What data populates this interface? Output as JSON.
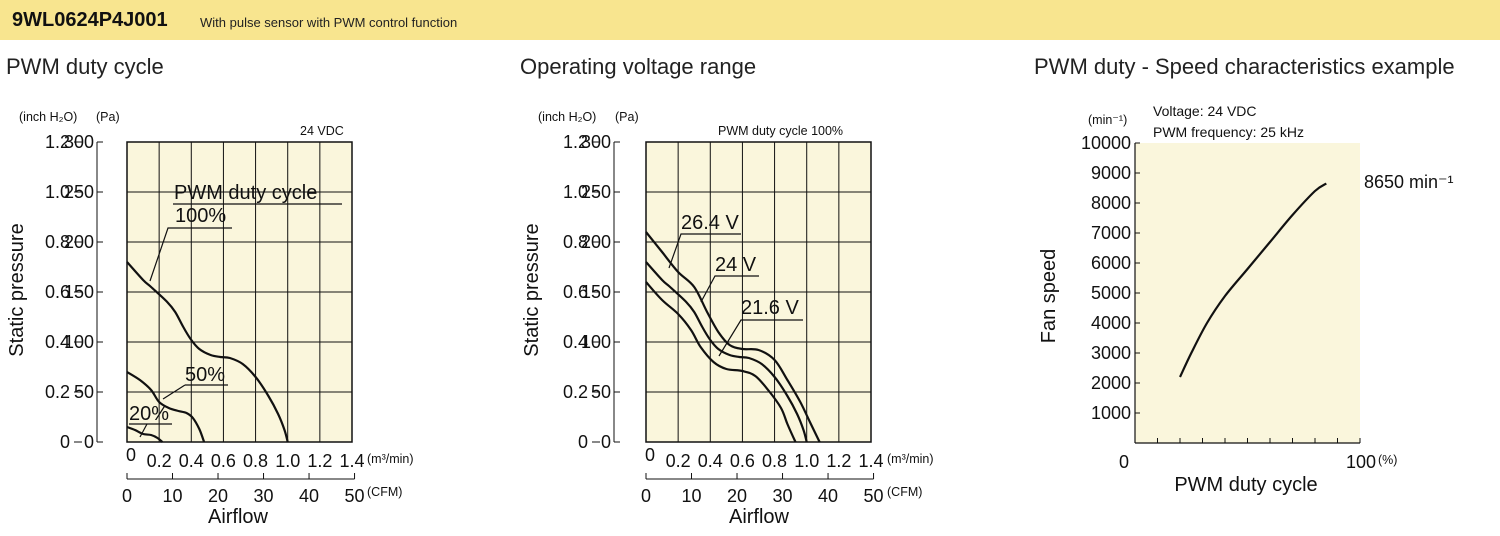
{
  "header": {
    "model": "9WL0624P4J001",
    "description": "With pulse sensor with PWM control function"
  },
  "sections": [
    {
      "title": "PWM duty cycle"
    },
    {
      "title": "Operating voltage range"
    },
    {
      "title": "PWM duty - Speed characteristics example"
    }
  ],
  "colors": {
    "banner": "#f8e58f",
    "plot_bg": "#faf6dc",
    "line": "#111111"
  },
  "chart_data": [
    {
      "type": "line",
      "title": "",
      "note": "24 VDC",
      "legend_title": "PWM duty cycle",
      "xlabel": "Airflow",
      "x_unit_primary": "(m³/min)",
      "x_unit_secondary": "(CFM)",
      "ylabel": "Static pressure",
      "y_unit_left": "(inch H₂O)",
      "y_unit_right": "(Pa)",
      "xlim": [
        0,
        1.4
      ],
      "ylim": [
        0,
        300
      ],
      "grid": true,
      "x_ticks": [
        "0.2",
        "0.4",
        "0.6",
        "0.8",
        "1.0",
        "1.2",
        "1.4"
      ],
      "x_cfm_ticks": [
        "0",
        "10",
        "20",
        "30",
        "40",
        "50"
      ],
      "y_pa_ticks": [
        "0",
        "50",
        "100",
        "150",
        "200",
        "250",
        "300"
      ],
      "y_inch_ticks": [
        "0",
        "0.2",
        "0.4",
        "0.6",
        "0.8",
        "1.0",
        "1.2"
      ],
      "x_origin_label": "0",
      "series": [
        {
          "name": "100%",
          "points": [
            [
              0,
              180
            ],
            [
              0.1,
              162
            ],
            [
              0.15,
              155
            ],
            [
              0.25,
              140
            ],
            [
              0.3,
              130
            ],
            [
              0.35,
              115
            ],
            [
              0.4,
              102
            ],
            [
              0.45,
              93
            ],
            [
              0.52,
              87
            ],
            [
              0.58,
              85
            ],
            [
              0.64,
              84
            ],
            [
              0.72,
              78
            ],
            [
              0.8,
              65
            ],
            [
              0.88,
              46
            ],
            [
              0.94,
              28
            ],
            [
              0.98,
              12
            ],
            [
              1.0,
              0
            ]
          ]
        },
        {
          "name": "50%",
          "points": [
            [
              0,
              70
            ],
            [
              0.08,
              62
            ],
            [
              0.15,
              52
            ],
            [
              0.2,
              40
            ],
            [
              0.26,
              34
            ],
            [
              0.32,
              31
            ],
            [
              0.37,
              29
            ],
            [
              0.41,
              24
            ],
            [
              0.45,
              13
            ],
            [
              0.48,
              0
            ]
          ]
        },
        {
          "name": "20%",
          "points": [
            [
              0,
              15
            ],
            [
              0.05,
              12
            ],
            [
              0.1,
              8
            ],
            [
              0.15,
              7
            ],
            [
              0.19,
              4
            ],
            [
              0.22,
              0
            ]
          ]
        }
      ]
    },
    {
      "type": "line",
      "title": "",
      "note": "PWM duty cycle 100%",
      "xlabel": "Airflow",
      "x_unit_primary": "(m³/min)",
      "x_unit_secondary": "(CFM)",
      "ylabel": "Static pressure",
      "y_unit_left": "(inch H₂O)",
      "y_unit_right": "(Pa)",
      "xlim": [
        0,
        1.4
      ],
      "ylim": [
        0,
        300
      ],
      "grid": true,
      "x_ticks": [
        "0.2",
        "0.4",
        "0.6",
        "0.8",
        "1.0",
        "1.2",
        "1.4"
      ],
      "x_cfm_ticks": [
        "0",
        "10",
        "20",
        "30",
        "40",
        "50"
      ],
      "y_pa_ticks": [
        "0",
        "50",
        "100",
        "150",
        "200",
        "250",
        "300"
      ],
      "y_inch_ticks": [
        "0",
        "0.2",
        "0.4",
        "0.6",
        "0.8",
        "1.0",
        "1.2"
      ],
      "x_origin_label": "0",
      "series": [
        {
          "name": "26.4 V",
          "points": [
            [
              0,
              210
            ],
            [
              0.1,
              190
            ],
            [
              0.2,
              170
            ],
            [
              0.3,
              155
            ],
            [
              0.38,
              130
            ],
            [
              0.45,
              110
            ],
            [
              0.52,
              97
            ],
            [
              0.6,
              93
            ],
            [
              0.7,
              92
            ],
            [
              0.8,
              82
            ],
            [
              0.88,
              62
            ],
            [
              0.96,
              40
            ],
            [
              1.02,
              20
            ],
            [
              1.08,
              0
            ]
          ]
        },
        {
          "name": "24 V",
          "points": [
            [
              0,
              180
            ],
            [
              0.1,
              162
            ],
            [
              0.15,
              155
            ],
            [
              0.25,
              140
            ],
            [
              0.3,
              130
            ],
            [
              0.35,
              115
            ],
            [
              0.4,
              102
            ],
            [
              0.45,
              93
            ],
            [
              0.52,
              87
            ],
            [
              0.58,
              85
            ],
            [
              0.64,
              84
            ],
            [
              0.72,
              78
            ],
            [
              0.8,
              65
            ],
            [
              0.88,
              46
            ],
            [
              0.94,
              28
            ],
            [
              0.98,
              12
            ],
            [
              1.0,
              0
            ]
          ]
        },
        {
          "name": "21.6 V",
          "points": [
            [
              0,
              160
            ],
            [
              0.1,
              142
            ],
            [
              0.2,
              128
            ],
            [
              0.28,
              112
            ],
            [
              0.34,
              95
            ],
            [
              0.42,
              80
            ],
            [
              0.5,
              73
            ],
            [
              0.6,
              71
            ],
            [
              0.68,
              66
            ],
            [
              0.76,
              52
            ],
            [
              0.84,
              34
            ],
            [
              0.88,
              18
            ],
            [
              0.93,
              0
            ]
          ]
        }
      ]
    },
    {
      "type": "line",
      "title": "",
      "note_voltage": "Voltage: 24 VDC",
      "note_frequency": "PWM frequency: 25 kHz",
      "xlabel": "PWM duty cycle",
      "x_unit": "(%)",
      "ylabel": "Fan speed",
      "y_unit": "(min⁻¹)",
      "xlim": [
        0,
        100
      ],
      "ylim": [
        0,
        10000
      ],
      "grid": false,
      "x_tick_labels": [
        "0",
        "100"
      ],
      "y_ticks": [
        "1000",
        "2000",
        "3000",
        "4000",
        "5000",
        "6000",
        "7000",
        "8000",
        "9000",
        "10000"
      ],
      "end_label": "8650 min⁻¹",
      "series": [
        {
          "points": [
            [
              20,
              2200
            ],
            [
              25,
              3000
            ],
            [
              32,
              4000
            ],
            [
              40,
              4900
            ],
            [
              50,
              5800
            ],
            [
              60,
              6700
            ],
            [
              70,
              7600
            ],
            [
              80,
              8400
            ],
            [
              85,
              8650
            ]
          ]
        }
      ]
    }
  ]
}
